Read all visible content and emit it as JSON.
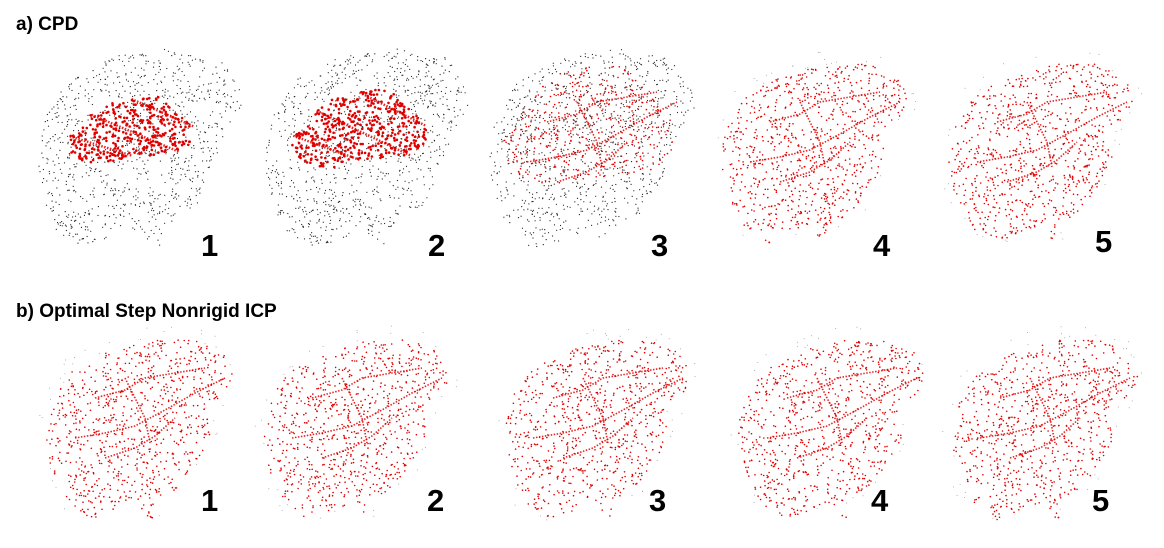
{
  "figure": {
    "sections": [
      {
        "id": "a",
        "title": "a) CPD",
        "panels": [
          {
            "number": "1",
            "fit": 0.15,
            "target_shown": true
          },
          {
            "number": "2",
            "fit": 0.25,
            "target_shown": true
          },
          {
            "number": "3",
            "fit": 0.65,
            "target_shown": true
          },
          {
            "number": "4",
            "fit": 1.0,
            "target_shown": false
          },
          {
            "number": "5",
            "fit": 1.0,
            "target_shown": false
          }
        ]
      },
      {
        "id": "b",
        "title": "b) Optimal Step Nonrigid ICP",
        "panels": [
          {
            "number": "1",
            "fit": 1.0,
            "target_shown": false
          },
          {
            "number": "2",
            "fit": 1.0,
            "target_shown": false
          },
          {
            "number": "3",
            "fit": 1.0,
            "target_shown": false
          },
          {
            "number": "4",
            "fit": 1.0,
            "target_shown": false
          },
          {
            "number": "5",
            "fit": 1.0,
            "target_shown": false
          }
        ]
      }
    ],
    "colors": {
      "source_points": "#e00000",
      "target_points": "#222222"
    }
  }
}
